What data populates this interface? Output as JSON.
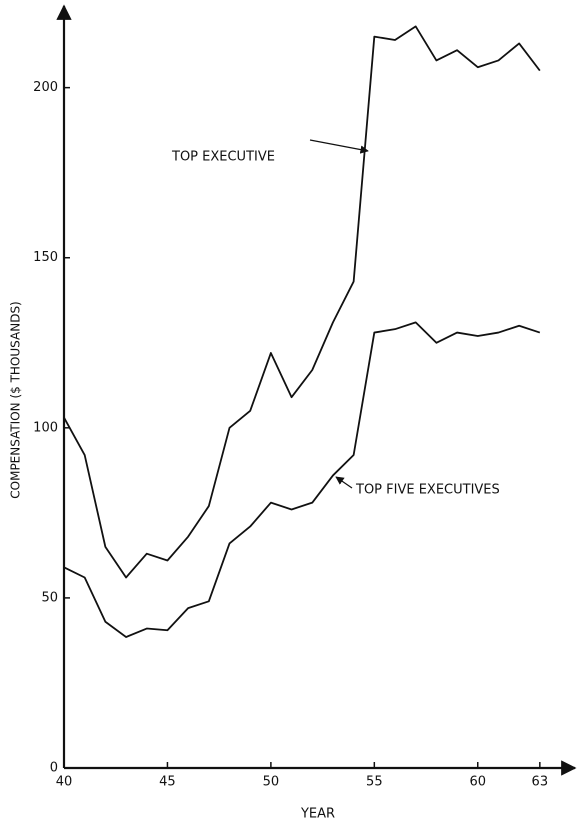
{
  "chart_data": {
    "type": "line",
    "xlabel": "YEAR",
    "ylabel": "COMPENSATION ($ THOUSANDS)",
    "x": [
      40,
      41,
      42,
      43,
      44,
      45,
      46,
      47,
      48,
      49,
      50,
      51,
      52,
      53,
      54,
      55,
      56,
      57,
      58,
      59,
      60,
      61,
      62,
      63
    ],
    "series": [
      {
        "name": "TOP EXECUTIVE",
        "color": "#111111",
        "values": [
          103,
          92,
          65,
          56,
          63,
          61,
          68,
          77,
          100,
          105,
          122,
          109,
          117,
          131,
          143,
          215,
          214,
          218,
          208,
          211,
          206,
          208,
          213,
          205
        ]
      },
      {
        "name": "TOP FIVE EXECUTIVES",
        "color": "#111111",
        "values": [
          59,
          56,
          43,
          38.5,
          41,
          40.5,
          47,
          49,
          66,
          71,
          78,
          76,
          78,
          86,
          92,
          128,
          129,
          131,
          125,
          128,
          127,
          128,
          130,
          128
        ]
      }
    ],
    "xlim": [
      40,
      64.7
    ],
    "ylim": [
      0,
      224
    ],
    "xticks": [
      40,
      45,
      50,
      55,
      60,
      63
    ],
    "yticks": [
      0,
      50,
      100,
      150,
      200
    ]
  }
}
